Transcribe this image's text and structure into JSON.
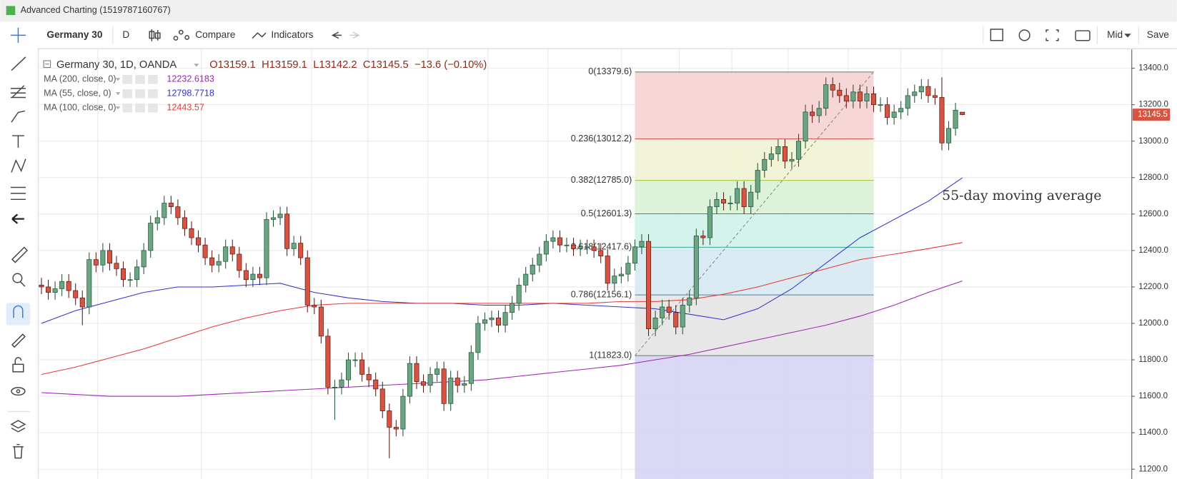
{
  "window": {
    "title": "Advanced Charting (1519787160767)"
  },
  "toolbar": {
    "symbol": "Germany 30",
    "interval": "D",
    "compare": "Compare",
    "indicators": "Indicators",
    "price_source": "Mid",
    "save": "Save"
  },
  "chart_data": {
    "type": "candlestick",
    "title": "Germany 30, 1D, OANDA",
    "header_values": [
      "O13159.1",
      "H13159.1",
      "L13142.2",
      "C13145.5",
      "−13.6 (−0.10%)"
    ],
    "up_color": "#6ba583",
    "down_color": "#d75442",
    "open": [
      12210,
      12200,
      12170,
      12190,
      12230,
      12180,
      12140,
      12090,
      12350,
      12320,
      12400,
      12330,
      12300,
      12240,
      12240,
      12310,
      12400,
      12550,
      12580,
      12660,
      12640,
      12580,
      12520,
      12470,
      12430,
      12360,
      12320,
      12340,
      12420,
      12380,
      12290,
      12240,
      12270,
      12250,
      12570,
      12580,
      12600,
      12410,
      12440,
      12360,
      12100,
      12090,
      11930,
      11650,
      11650,
      11690,
      11800,
      11800,
      11720,
      11690,
      11640,
      11520,
      11430,
      11420,
      11600,
      11780,
      11680,
      11660,
      11720,
      11750,
      11560,
      11700,
      11660,
      11670,
      11840,
      12000,
      12020,
      12030,
      11990,
      12060,
      12110,
      12210,
      12270,
      12320,
      12380,
      12450,
      12470,
      12430,
      12430,
      12410,
      12420,
      12420,
      12400,
      12370,
      12220,
      12260,
      12270,
      12330,
      12420,
      12450,
      11970,
      12030,
      12090,
      12060,
      11980,
      12100,
      12140,
      12480,
      12470,
      12640,
      12680,
      12660,
      12660,
      12740,
      12640,
      12720,
      12840,
      12900,
      12930,
      12970,
      12890,
      12900,
      13000,
      13160,
      13140,
      13180,
      13310,
      13280,
      13250,
      13220,
      13270,
      13220,
      13260,
      13200,
      13200,
      13130,
      13160,
      13180,
      13250,
      13270,
      13300,
      13250,
      13240,
      12990,
      13070,
      13159.1
    ],
    "high": [
      12250,
      12240,
      12230,
      12270,
      12270,
      12220,
      12180,
      12390,
      12390,
      12440,
      12440,
      12370,
      12340,
      12280,
      12350,
      12440,
      12590,
      12620,
      12700,
      12700,
      12680,
      12620,
      12560,
      12510,
      12470,
      12400,
      12380,
      12460,
      12460,
      12420,
      12330,
      12310,
      12310,
      12610,
      12620,
      12640,
      12640,
      12480,
      12480,
      12400,
      12140,
      12130,
      11970,
      11690,
      11730,
      11840,
      11840,
      11840,
      11760,
      11730,
      11680,
      11560,
      11470,
      11640,
      11820,
      11820,
      11720,
      11760,
      11790,
      11790,
      11740,
      11740,
      11710,
      11880,
      12040,
      12060,
      12070,
      12070,
      12100,
      12150,
      12250,
      12310,
      12360,
      12420,
      12490,
      12510,
      12510,
      12470,
      12470,
      12460,
      12460,
      12460,
      12440,
      12410,
      12300,
      12310,
      12370,
      12460,
      12490,
      12490,
      12070,
      12130,
      12130,
      12100,
      12140,
      12180,
      12520,
      12510,
      12680,
      12720,
      12720,
      12700,
      12780,
      12780,
      12760,
      12880,
      12940,
      12970,
      13010,
      13010,
      12940,
      13040,
      13200,
      13200,
      13220,
      13350,
      13350,
      13320,
      13290,
      13310,
      13310,
      13300,
      13300,
      13240,
      13240,
      13200,
      13220,
      13290,
      13310,
      13340,
      13340,
      13290,
      13350,
      13110,
      13210,
      13159.1
    ],
    "low": [
      12160,
      12130,
      12130,
      12150,
      12140,
      12100,
      11990,
      12050,
      12280,
      12280,
      12290,
      12260,
      12200,
      12200,
      12200,
      12270,
      12360,
      12510,
      12540,
      12600,
      12540,
      12480,
      12430,
      12390,
      12320,
      12280,
      12280,
      12300,
      12340,
      12250,
      12200,
      12200,
      12210,
      12210,
      12530,
      12540,
      12370,
      12370,
      12320,
      12060,
      12050,
      11890,
      11610,
      11470,
      11610,
      11650,
      11760,
      11680,
      11650,
      11600,
      11480,
      11260,
      11380,
      11380,
      11560,
      11640,
      11620,
      11620,
      11680,
      11520,
      11520,
      11620,
      11620,
      11630,
      11800,
      11960,
      11980,
      11950,
      11950,
      12020,
      12070,
      12170,
      12230,
      12280,
      12340,
      12410,
      12390,
      12390,
      12370,
      12370,
      12380,
      12360,
      12330,
      12180,
      12180,
      12220,
      12230,
      12290,
      12380,
      11930,
      11930,
      11990,
      12020,
      11940,
      11940,
      12060,
      12100,
      12430,
      12430,
      12600,
      12620,
      12620,
      12620,
      12600,
      12600,
      12680,
      12800,
      12860,
      12890,
      12850,
      12850,
      12860,
      12960,
      13100,
      13100,
      13140,
      13240,
      13210,
      13180,
      13180,
      13180,
      13180,
      13160,
      13160,
      13090,
      13090,
      13120,
      13140,
      13210,
      13230,
      13210,
      13200,
      12950,
      12950,
      13030,
      13142.2
    ],
    "close": [
      12200,
      12170,
      12190,
      12230,
      12180,
      12140,
      12090,
      12350,
      12320,
      12400,
      12330,
      12300,
      12240,
      12240,
      12310,
      12400,
      12550,
      12580,
      12660,
      12640,
      12580,
      12520,
      12470,
      12430,
      12360,
      12320,
      12340,
      12420,
      12380,
      12290,
      12240,
      12270,
      12250,
      12570,
      12580,
      12600,
      12410,
      12440,
      12360,
      12100,
      12090,
      11930,
      11650,
      11650,
      11690,
      11800,
      11800,
      11720,
      11690,
      11640,
      11520,
      11430,
      11420,
      11600,
      11780,
      11680,
      11660,
      11720,
      11750,
      11560,
      11700,
      11660,
      11670,
      11840,
      12000,
      12020,
      12030,
      11990,
      12060,
      12110,
      12210,
      12270,
      12320,
      12380,
      12450,
      12470,
      12430,
      12430,
      12410,
      12420,
      12420,
      12400,
      12370,
      12220,
      12260,
      12270,
      12330,
      12420,
      12450,
      11970,
      12030,
      12090,
      12060,
      11980,
      12100,
      12140,
      12480,
      12470,
      12640,
      12680,
      12660,
      12660,
      12740,
      12640,
      12720,
      12840,
      12900,
      12930,
      12970,
      12890,
      12900,
      13000,
      13160,
      13140,
      13180,
      13310,
      13280,
      13250,
      13220,
      13270,
      13220,
      13260,
      13200,
      13200,
      13130,
      13160,
      13180,
      13250,
      13270,
      13300,
      13250,
      13240,
      12990,
      13070,
      13170,
      13145.5
    ],
    "indicators": [
      {
        "name": "MA (200, close, 0)",
        "color": "#9c27b0",
        "x": [
          0,
          5,
          10,
          15,
          20,
          25,
          30,
          35,
          40,
          45,
          50,
          55,
          60,
          65,
          70,
          75,
          80,
          85,
          90,
          95,
          100,
          105,
          110,
          115,
          120,
          125,
          130,
          135
        ],
        "values": [
          11620,
          11610,
          11600,
          11600,
          11600,
          11610,
          11620,
          11630,
          11640,
          11650,
          11660,
          11670,
          11680,
          11690,
          11710,
          11730,
          11750,
          11770,
          11800,
          11830,
          11870,
          11910,
          11950,
          11990,
          12040,
          12100,
          12170,
          12232.6183
        ]
      },
      {
        "name": "MA (55, close, 0)",
        "color": "#3333cc",
        "x": [
          0,
          5,
          10,
          15,
          20,
          25,
          30,
          35,
          40,
          45,
          50,
          55,
          60,
          65,
          70,
          75,
          80,
          85,
          90,
          95,
          100,
          105,
          110,
          115,
          120,
          125,
          130,
          135
        ],
        "values": [
          12000,
          12070,
          12120,
          12170,
          12200,
          12200,
          12210,
          12220,
          12170,
          12140,
          12120,
          12110,
          12110,
          12100,
          12100,
          12110,
          12100,
          12090,
          12080,
          12050,
          12020,
          12080,
          12190,
          12330,
          12470,
          12570,
          12670,
          12798.7718
        ]
      },
      {
        "name": "MA (100, close, 0)",
        "color": "#e53935",
        "x": [
          0,
          5,
          10,
          15,
          20,
          25,
          30,
          35,
          40,
          45,
          50,
          55,
          60,
          65,
          70,
          75,
          80,
          85,
          90,
          95,
          100,
          105,
          110,
          115,
          120,
          125,
          130,
          135
        ],
        "values": [
          11720,
          11760,
          11810,
          11860,
          11920,
          11980,
          12030,
          12070,
          12100,
          12110,
          12110,
          12110,
          12110,
          12110,
          12110,
          12110,
          12110,
          12120,
          12120,
          12130,
          12160,
          12200,
          12250,
          12300,
          12350,
          12380,
          12410,
          12443.57
        ]
      }
    ],
    "annotation": {
      "text": "55-day moving average",
      "color": "#3333cc"
    },
    "fibonacci": {
      "x": [
        87,
        122
      ],
      "levels": [
        {
          "value": 13379.6,
          "label": "0(13379.6)",
          "color": "#808080",
          "fill": "#f5cfcf"
        },
        {
          "value": 13012.2,
          "label": "0.236(13012.2)",
          "color": "#d04a4a",
          "fill": "#eef2cf"
        },
        {
          "value": 12785.0,
          "label": "0.382(12785.0)",
          "color": "#9fbf3a",
          "fill": "#d6f1d3"
        },
        {
          "value": 12601.3,
          "label": "0.5(12601.3)",
          "color": "#2e9e3e",
          "fill": "#cdf1e7"
        },
        {
          "value": 12417.6,
          "label": "0.618(12417.6)",
          "color": "#35aa8c",
          "fill": "#d3e7f2"
        },
        {
          "value": 12156.1,
          "label": "0.786(12156.1)",
          "color": "#3e84b5",
          "fill": "#e3e3e3"
        },
        {
          "value": 11823.0,
          "label": "1(11823.0)",
          "color": "#808080",
          "fill": "#d2d2f4"
        }
      ]
    },
    "ylim": [
      11146,
      13503
    ],
    "yticks": [
      {
        "value": 11200,
        "label": "11200.0"
      },
      {
        "value": 11400,
        "label": "11400.0"
      },
      {
        "value": 11600,
        "label": "11600.0"
      },
      {
        "value": 11800,
        "label": "11800.0"
      },
      {
        "value": 12000,
        "label": "12000.0"
      },
      {
        "value": 12200,
        "label": "12200.0"
      },
      {
        "value": 12400,
        "label": "12400.0"
      },
      {
        "value": 12600,
        "label": "12600.0"
      },
      {
        "value": 12800,
        "label": "12800.0"
      },
      {
        "value": 13000,
        "label": "13000.0"
      },
      {
        "value": 13200,
        "label": "13200.0"
      },
      {
        "value": 13400,
        "label": "13400.0"
      }
    ],
    "grid": true,
    "price_tag_color": "#d75442"
  }
}
